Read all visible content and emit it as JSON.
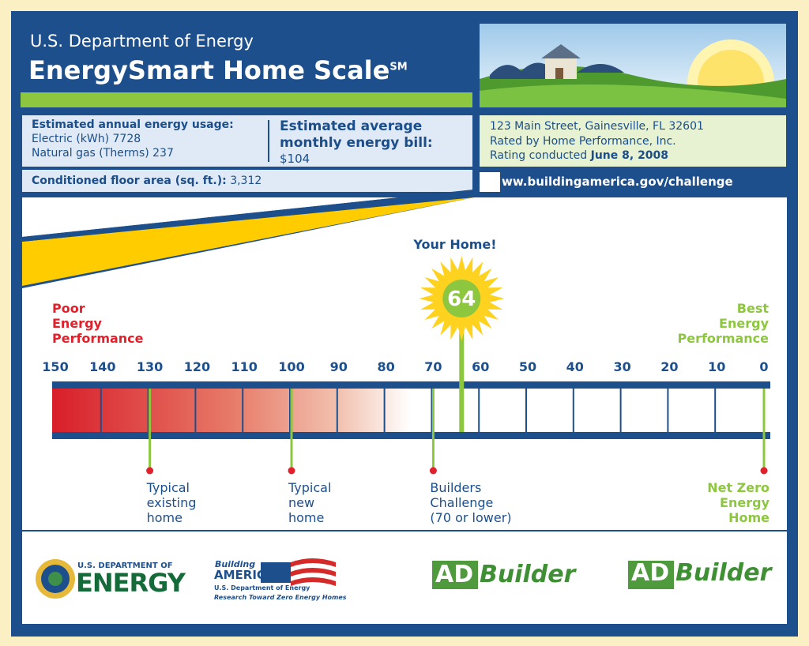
{
  "header": {
    "agency": "U.S. Department of Energy",
    "title": "EnergySmart Home Scale",
    "title_mark": "SM"
  },
  "usage": {
    "heading": "Estimated annual energy usage:",
    "electric": "Electric (kWh) 7728",
    "gas": "Natural gas (Therms) 237"
  },
  "bill": {
    "heading": "Estimated average monthly energy bill:",
    "amount": "$104"
  },
  "floor_area": {
    "label": "Conditioned floor area (sq. ft.):",
    "value": "3,312"
  },
  "rating": {
    "address": "123 Main Street, Gainesville, FL  32601",
    "rater": "Rated by Home Performance, Inc.",
    "date_label": "Rating conducted",
    "date": "June 8, 2008"
  },
  "url": "ww.buildingamerica.gov/challenge",
  "scale": {
    "left_label": [
      "Poor",
      "Energy",
      "Performance"
    ],
    "right_label": [
      "Best",
      "Energy",
      "Performance"
    ],
    "ticks": [
      150,
      140,
      130,
      120,
      110,
      100,
      90,
      80,
      70,
      60,
      50,
      40,
      30,
      20,
      10,
      0
    ],
    "your_home": "Your Home!",
    "score": 64,
    "markers": [
      {
        "value": 130,
        "label": [
          "Typical",
          "existing",
          "home"
        ]
      },
      {
        "value": 100,
        "label": [
          "Typical",
          "new",
          "home"
        ]
      },
      {
        "value": 70,
        "label": [
          "Builders",
          "Challenge",
          "(70 or lower)"
        ]
      },
      {
        "value": 0,
        "label": [
          "Net Zero",
          "Energy",
          "Home"
        ]
      }
    ]
  },
  "logos": {
    "doe_top": "U.S. DEPARTMENT OF",
    "doe_main": "ENERGY",
    "ba_script": "Building",
    "ba_main": "AMERICA",
    "ba_dept": "U.S. Department of Energy",
    "ba_tagline": "Research Toward Zero Energy Homes",
    "ad1_box": "AD",
    "ad1_text": "Builder",
    "ad2_box": "AD",
    "ad2_text": "Builder"
  }
}
